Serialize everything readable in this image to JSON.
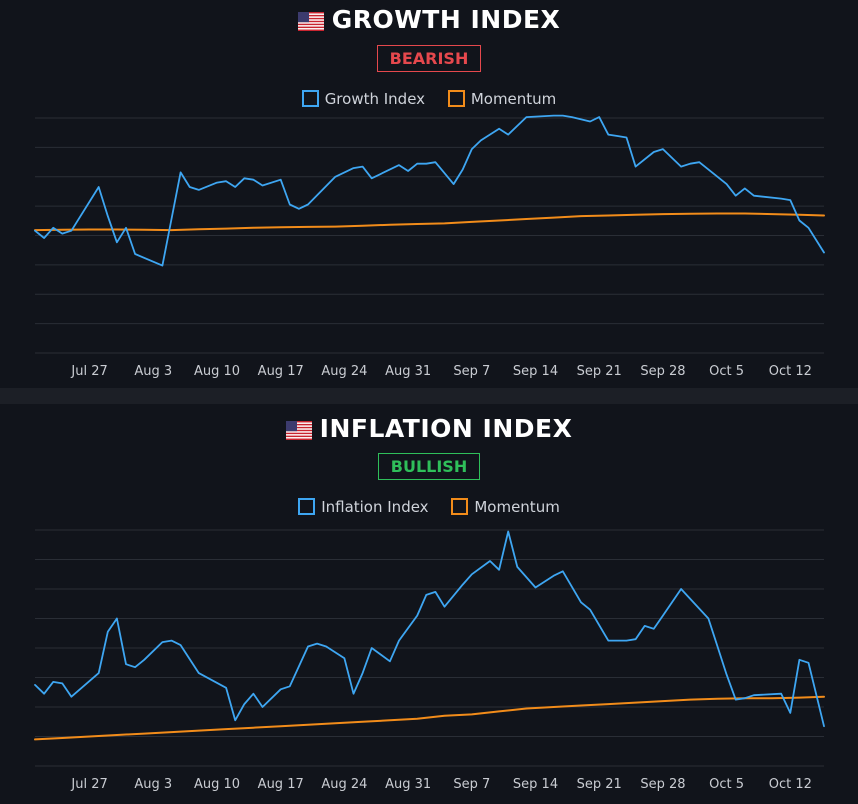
{
  "colors": {
    "background": "#11141b",
    "divider": "#1c1f26",
    "grid": "#2a2e36",
    "series_main": "#3ea6f2",
    "series_momentum": "#f28c1a",
    "bearish": "#e5484d",
    "bullish": "#2fbf5a",
    "title": "#ffffff"
  },
  "chart_data": [
    {
      "type": "line",
      "title": "GROWTH INDEX",
      "badge": "BEARISH",
      "legend": [
        "Growth Index",
        "Momentum"
      ],
      "xlabel": "",
      "ylabel": "",
      "x_ticks": [
        {
          "day": 0,
          "label": "Jul 27"
        },
        {
          "day": 7,
          "label": "Aug 3"
        },
        {
          "day": 14,
          "label": "Aug 10"
        },
        {
          "day": 21,
          "label": "Aug 17"
        },
        {
          "day": 28,
          "label": "Aug 24"
        },
        {
          "day": 35,
          "label": "Aug 31"
        },
        {
          "day": 42,
          "label": "Sep 7"
        },
        {
          "day": 49,
          "label": "Sep 14"
        },
        {
          "day": 56,
          "label": "Sep 21"
        },
        {
          "day": 63,
          "label": "Sep 28"
        },
        {
          "day": 70,
          "label": "Oct 5"
        },
        {
          "day": 77,
          "label": "Oct 12"
        }
      ],
      "xlim": [
        -6,
        80.7
      ],
      "ylim": [
        -1,
        7
      ],
      "grid_lines": 9,
      "series": [
        {
          "name": "Growth Index",
          "x": [
            -6,
            -5,
            -4,
            -3,
            -2,
            1,
            2,
            3,
            4,
            5,
            8,
            9,
            10,
            11,
            12,
            14,
            15,
            16,
            17,
            18,
            19,
            21,
            22,
            23,
            24,
            27,
            28,
            29,
            30,
            31,
            34,
            35,
            36,
            37,
            38,
            40,
            41,
            42,
            43,
            45,
            46,
            48,
            51,
            52,
            53,
            55,
            56,
            57,
            58,
            59,
            60,
            62,
            63,
            65,
            66,
            67,
            70,
            71,
            72,
            73,
            76,
            77,
            78,
            79,
            80.7
          ],
          "y": [
            3.2,
            2.95,
            3.3,
            3.1,
            3.2,
            4.7,
            3.7,
            2.8,
            3.3,
            2.4,
            2.0,
            3.6,
            5.2,
            4.7,
            4.6,
            4.85,
            4.9,
            4.7,
            5.0,
            4.95,
            4.75,
            4.95,
            4.1,
            3.95,
            4.1,
            5.05,
            5.2,
            5.35,
            5.4,
            5.0,
            5.45,
            5.25,
            5.5,
            5.5,
            5.55,
            4.8,
            5.3,
            6.0,
            6.3,
            6.7,
            6.5,
            7.1,
            7.15,
            7.15,
            7.1,
            6.95,
            7.1,
            6.5,
            6.45,
            6.4,
            5.4,
            5.9,
            6.0,
            5.4,
            5.5,
            5.55,
            4.8,
            4.4,
            4.65,
            4.4,
            4.3,
            4.25,
            3.55,
            3.3,
            2.45
          ],
          "color": "#3ea6f2"
        },
        {
          "name": "Momentum",
          "x": [
            -6,
            -3,
            0,
            3,
            6,
            9,
            12,
            15,
            18,
            21,
            24,
            27,
            30,
            33,
            36,
            39,
            42,
            45,
            48,
            51,
            54,
            57,
            60,
            63,
            66,
            69,
            72,
            75,
            78,
            80.7
          ],
          "y": [
            3.22,
            3.23,
            3.24,
            3.24,
            3.23,
            3.22,
            3.25,
            3.27,
            3.3,
            3.32,
            3.33,
            3.34,
            3.37,
            3.4,
            3.43,
            3.45,
            3.5,
            3.55,
            3.6,
            3.65,
            3.7,
            3.72,
            3.75,
            3.77,
            3.78,
            3.79,
            3.79,
            3.77,
            3.75,
            3.72
          ],
          "color": "#f28c1a"
        }
      ]
    },
    {
      "type": "line",
      "title": "INFLATION INDEX",
      "badge": "BULLISH",
      "legend": [
        "Inflation Index",
        "Momentum"
      ],
      "xlabel": "",
      "ylabel": "",
      "x_ticks": [
        {
          "day": 0,
          "label": "Jul 27"
        },
        {
          "day": 7,
          "label": "Aug 3"
        },
        {
          "day": 14,
          "label": "Aug 10"
        },
        {
          "day": 21,
          "label": "Aug 17"
        },
        {
          "day": 28,
          "label": "Aug 24"
        },
        {
          "day": 35,
          "label": "Aug 31"
        },
        {
          "day": 42,
          "label": "Sep 7"
        },
        {
          "day": 49,
          "label": "Sep 14"
        },
        {
          "day": 56,
          "label": "Sep 21"
        },
        {
          "day": 63,
          "label": "Sep 28"
        },
        {
          "day": 70,
          "label": "Oct 5"
        },
        {
          "day": 77,
          "label": "Oct 12"
        }
      ],
      "xlim": [
        -6,
        80.7
      ],
      "ylim": [
        0,
        8
      ],
      "grid_lines": 9,
      "series": [
        {
          "name": "Inflation Index",
          "x": [
            -6,
            -5,
            -4,
            -3,
            -2,
            1,
            2,
            3,
            4,
            5,
            6,
            8,
            9,
            10,
            12,
            15,
            16,
            17,
            18,
            19,
            21,
            22,
            24,
            25,
            26,
            28,
            29,
            30,
            31,
            33,
            34,
            36,
            37,
            38,
            39,
            41,
            42,
            44,
            45,
            46,
            47,
            49,
            50,
            51,
            52,
            54,
            55,
            57,
            58,
            59,
            60,
            61,
            62,
            63,
            65,
            68,
            69,
            70,
            71,
            72,
            73,
            76,
            77,
            78,
            79,
            80.7
          ],
          "y": [
            2.75,
            2.45,
            2.85,
            2.8,
            2.35,
            3.15,
            4.55,
            5.0,
            3.45,
            3.35,
            3.6,
            4.2,
            4.25,
            4.1,
            3.15,
            2.65,
            1.55,
            2.1,
            2.45,
            2.0,
            2.6,
            2.7,
            4.05,
            4.15,
            4.05,
            3.65,
            2.45,
            3.15,
            4.0,
            3.55,
            4.25,
            5.1,
            5.8,
            5.9,
            5.4,
            6.15,
            6.5,
            6.95,
            6.65,
            7.95,
            6.75,
            6.05,
            6.25,
            6.45,
            6.6,
            5.55,
            5.3,
            4.25,
            4.25,
            4.25,
            4.3,
            4.75,
            4.65,
            5.1,
            6.0,
            5.0,
            4.05,
            3.1,
            2.25,
            2.3,
            2.4,
            2.45,
            1.8,
            3.6,
            3.5,
            1.35
          ],
          "color": "#3ea6f2"
        },
        {
          "name": "Momentum",
          "x": [
            -6,
            -3,
            0,
            3,
            6,
            9,
            12,
            15,
            18,
            21,
            24,
            27,
            30,
            33,
            36,
            39,
            42,
            45,
            48,
            51,
            54,
            57,
            60,
            63,
            66,
            69,
            72,
            75,
            78,
            80.7
          ],
          "y": [
            0.9,
            0.95,
            1.0,
            1.05,
            1.1,
            1.15,
            1.2,
            1.25,
            1.3,
            1.35,
            1.4,
            1.45,
            1.5,
            1.55,
            1.6,
            1.7,
            1.75,
            1.85,
            1.95,
            2.0,
            2.05,
            2.1,
            2.15,
            2.2,
            2.25,
            2.28,
            2.3,
            2.3,
            2.32,
            2.35
          ],
          "color": "#f28c1a"
        }
      ]
    }
  ]
}
